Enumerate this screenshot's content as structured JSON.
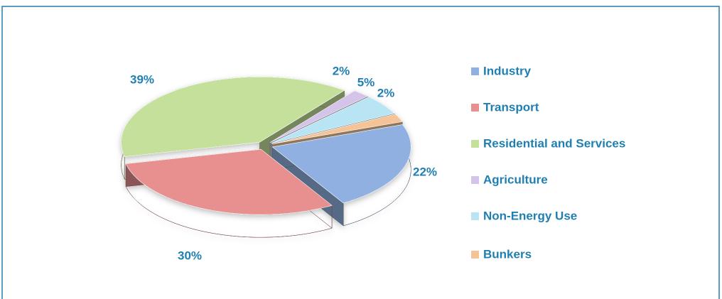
{
  "chart_data": {
    "type": "pie",
    "categories": [
      "Industry",
      "Transport",
      "Residential and Services",
      "Agriculture",
      "Non-Energy Use",
      "Bunkers"
    ],
    "values": [
      22,
      30,
      39,
      2,
      5,
      2
    ],
    "value_labels": [
      "22%",
      "30%",
      "39%",
      "2%",
      "5%",
      "2%"
    ],
    "colors": [
      "#8fb0e0",
      "#e89090",
      "#c4e09a",
      "#d4c4ea",
      "#b8e4f4",
      "#f4c498"
    ],
    "legend": "right"
  }
}
